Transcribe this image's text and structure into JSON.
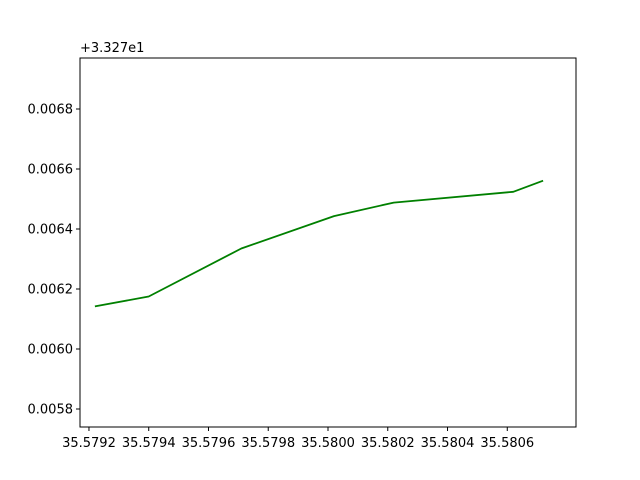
{
  "chart_data": {
    "type": "line",
    "title": "",
    "xlabel": "",
    "ylabel": "",
    "y_offset_label": "+3.327e1",
    "y_offset": 33.27,
    "xlim": [
      35.57917,
      35.58083
    ],
    "ylim": [
      0.00574,
      0.00697
    ],
    "grid": false,
    "x_ticks": [
      35.5792,
      35.5794,
      35.5796,
      35.5798,
      35.58,
      35.5802,
      35.5804,
      35.5806
    ],
    "x_tick_labels": [
      "35.5792",
      "35.5794",
      "35.5796",
      "35.5798",
      "35.5800",
      "35.5802",
      "35.5804",
      "35.5806"
    ],
    "y_ticks": [
      0.0058,
      0.006,
      0.0062,
      0.0064,
      0.0066,
      0.0068
    ],
    "y_tick_labels": [
      "0.0058",
      "0.0060",
      "0.0062",
      "0.0064",
      "0.0066",
      "0.0068"
    ],
    "series": [
      {
        "color": "#008000",
        "x": [
          35.57922,
          35.5794,
          35.57971,
          35.58002,
          35.58022,
          35.58062,
          35.58072
        ],
        "y": [
          0.006142,
          0.006175,
          0.006335,
          0.006443,
          0.006488,
          0.006524,
          0.006561
        ]
      }
    ]
  }
}
